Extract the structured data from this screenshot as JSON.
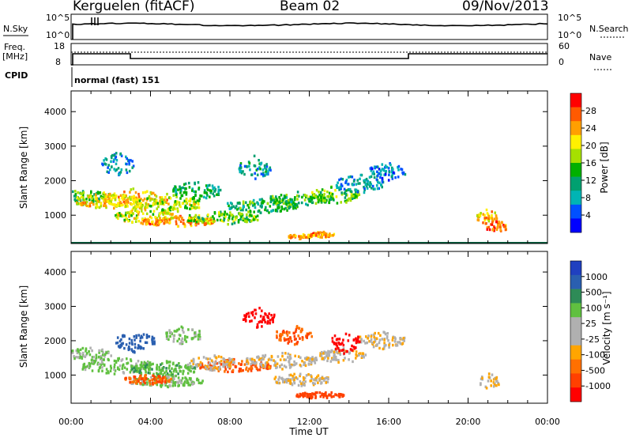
{
  "header": {
    "station": "Kerguelen (fitACF)",
    "beam": "Beam 02",
    "date": "09/Nov/2013"
  },
  "top_panels": {
    "nsky_label": "N.Sky",
    "nsearch_label": "N.Search",
    "nsky_ticks": [
      "10^5",
      "10^0"
    ],
    "nsearch_ticks": [
      "10^5",
      "10^0"
    ],
    "freq_label_line1": "Freq.",
    "freq_label_line2": "[MHz]",
    "freq_ticks": [
      "18",
      "8"
    ],
    "nave_label": "Nave",
    "nave_ticks": [
      "60",
      "0"
    ],
    "cpid_label": "CPID",
    "cpid_value": "normal (fast) 151"
  },
  "colorbars": {
    "power": {
      "label": "Power [dB]",
      "ticks": [
        "28",
        "24",
        "20",
        "16",
        "12",
        "8",
        "4"
      ],
      "colors": [
        "#ff0000",
        "#ff5a00",
        "#ff9f00",
        "#fff000",
        "#a6e000",
        "#00b000",
        "#00a070",
        "#00b4b4",
        "#0050ff",
        "#0000ff"
      ]
    },
    "velocity": {
      "label": "Velocity [m s⁻¹]",
      "ticks": [
        "1000",
        "500",
        "100",
        "25",
        "-25",
        "-100",
        "-500",
        "-1000"
      ],
      "colors": [
        "#2040c0",
        "#2a5fb0",
        "#2e8b57",
        "#60c040",
        "#b0b0b0",
        "#b0b0b0",
        "#ffa500",
        "#ff7000",
        "#ff4000",
        "#ff0000"
      ]
    }
  },
  "chart_data": [
    {
      "type": "heatmap",
      "title": "Power",
      "xlabel": "Time UT",
      "ylabel": "Slant Range [km]",
      "x_tick_labels": [
        "00:00",
        "04:00",
        "08:00",
        "12:00",
        "16:00",
        "20:00",
        "00:00"
      ],
      "y_ticks": [
        1000,
        2000,
        3000,
        4000
      ],
      "xlim": [
        0,
        24
      ],
      "ylim": [
        180,
        4600
      ],
      "colorbar_label": "Power [dB]",
      "colorbar_ticks": [
        4,
        8,
        12,
        16,
        20,
        24,
        28
      ],
      "blobs": [
        {
          "t": 0.6,
          "r": 1550,
          "dt": 1.3,
          "dr": 240,
          "v": 15
        },
        {
          "t": 1.8,
          "r": 1450,
          "dt": 1.6,
          "dr": 260,
          "v": 21
        },
        {
          "t": 3.2,
          "r": 1500,
          "dt": 1.6,
          "dr": 320,
          "v": 21
        },
        {
          "t": 4.8,
          "r": 1350,
          "dt": 1.6,
          "dr": 300,
          "v": 18
        },
        {
          "t": 3.6,
          "r": 1000,
          "dt": 1.5,
          "dr": 220,
          "v": 19
        },
        {
          "t": 5.4,
          "r": 850,
          "dt": 1.8,
          "dr": 170,
          "v": 24
        },
        {
          "t": 7.6,
          "r": 950,
          "dt": 1.8,
          "dr": 200,
          "v": 16
        },
        {
          "t": 6.3,
          "r": 1750,
          "dt": 1.2,
          "dr": 300,
          "v": 12
        },
        {
          "t": 9.6,
          "r": 1300,
          "dt": 1.8,
          "dr": 220,
          "v": 13
        },
        {
          "t": 11.6,
          "r": 1500,
          "dt": 1.6,
          "dr": 240,
          "v": 14
        },
        {
          "t": 13.2,
          "r": 1600,
          "dt": 1.3,
          "dr": 280,
          "v": 16
        },
        {
          "t": 14.5,
          "r": 1950,
          "dt": 1.2,
          "dr": 300,
          "v": 9
        },
        {
          "t": 15.9,
          "r": 2300,
          "dt": 0.9,
          "dr": 260,
          "v": 8
        },
        {
          "t": 11.5,
          "r": 420,
          "dt": 0.6,
          "dr": 80,
          "v": 23
        },
        {
          "t": 12.6,
          "r": 470,
          "dt": 0.6,
          "dr": 90,
          "v": 24
        },
        {
          "t": 2.3,
          "r": 2500,
          "dt": 0.8,
          "dr": 360,
          "v": 9
        },
        {
          "t": 9.2,
          "r": 2400,
          "dt": 0.8,
          "dr": 360,
          "v": 10
        },
        {
          "t": 20.9,
          "r": 1000,
          "dt": 0.5,
          "dr": 240,
          "v": 22
        },
        {
          "t": 21.4,
          "r": 700,
          "dt": 0.5,
          "dr": 200,
          "v": 25
        }
      ]
    },
    {
      "type": "heatmap",
      "title": "Velocity",
      "xlabel": "Time UT",
      "ylabel": "Slant Range [km]",
      "x_tick_labels": [
        "00:00",
        "04:00",
        "08:00",
        "12:00",
        "16:00",
        "20:00",
        "00:00"
      ],
      "y_ticks": [
        1000,
        2000,
        3000,
        4000
      ],
      "xlim": [
        0,
        24
      ],
      "ylim": [
        180,
        4600
      ],
      "colorbar_label": "Velocity [m s⁻¹]",
      "colorbar_ticks": [
        1000,
        500,
        100,
        25,
        -25,
        -100,
        -500,
        -1000
      ],
      "blobs": [
        {
          "t": 0.8,
          "r": 1650,
          "dt": 1.2,
          "dr": 220,
          "v": 120
        },
        {
          "t": 2.3,
          "r": 1300,
          "dt": 1.8,
          "dr": 260,
          "v": 160
        },
        {
          "t": 3.2,
          "r": 2000,
          "dt": 1.0,
          "dr": 320,
          "v": 600
        },
        {
          "t": 4.6,
          "r": 1200,
          "dt": 1.6,
          "dr": 260,
          "v": 250
        },
        {
          "t": 4.8,
          "r": 850,
          "dt": 1.8,
          "dr": 170,
          "v": 150
        },
        {
          "t": 3.8,
          "r": 900,
          "dt": 1.2,
          "dr": 150,
          "v": -300
        },
        {
          "t": 8.2,
          "r": 1300,
          "dt": 1.8,
          "dr": 200,
          "v": -300
        },
        {
          "t": 7.0,
          "r": 1400,
          "dt": 1.2,
          "dr": 240,
          "v": 0
        },
        {
          "t": 10.6,
          "r": 1450,
          "dt": 1.8,
          "dr": 240,
          "v": 0
        },
        {
          "t": 11.6,
          "r": 900,
          "dt": 1.4,
          "dr": 200,
          "v": 0
        },
        {
          "t": 13.6,
          "r": 1600,
          "dt": 1.2,
          "dr": 240,
          "v": 0
        },
        {
          "t": 15.6,
          "r": 2050,
          "dt": 1.2,
          "dr": 260,
          "v": 0
        },
        {
          "t": 13.8,
          "r": 2000,
          "dt": 0.7,
          "dr": 380,
          "v": -700
        },
        {
          "t": 11.2,
          "r": 2200,
          "dt": 0.9,
          "dr": 300,
          "v": -300
        },
        {
          "t": 12.5,
          "r": 450,
          "dt": 1.2,
          "dr": 110,
          "v": -400
        },
        {
          "t": 9.4,
          "r": 2700,
          "dt": 0.8,
          "dr": 300,
          "v": -600
        },
        {
          "t": 5.6,
          "r": 2200,
          "dt": 0.9,
          "dr": 280,
          "v": 120
        },
        {
          "t": 21.0,
          "r": 850,
          "dt": 0.5,
          "dr": 260,
          "v": 0
        }
      ]
    }
  ]
}
